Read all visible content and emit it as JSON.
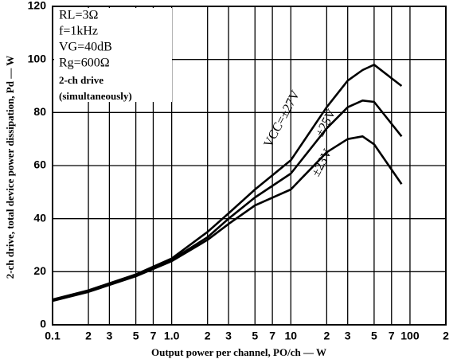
{
  "chart_data": {
    "type": "line",
    "x_label": "Output power per channel, PO/ch — W",
    "y_label": "2-ch drive, total device power dissipation, Pd — W",
    "annotations": [
      "RL=3Ω",
      "f=1kHz",
      "VG=40dB",
      "Rg=600Ω",
      "2-ch drive",
      "(simultaneously)"
    ],
    "x": [
      0.1,
      0.2,
      0.5,
      1,
      2,
      3,
      5,
      10,
      20,
      30,
      40,
      50,
      85
    ],
    "series": [
      {
        "name": "VCC=±27V",
        "color": "#000000",
        "values": [
          9.5,
          13,
          19,
          25,
          35,
          42,
          51,
          62,
          82,
          92,
          96,
          98,
          90
        ]
      },
      {
        "name": "±25V",
        "color": "#000000",
        "values": [
          9.3,
          12.7,
          18.7,
          24.5,
          33,
          40,
          48,
          57,
          74,
          82,
          84.5,
          84,
          71
        ]
      },
      {
        "name": "±23V",
        "color": "#000000",
        "values": [
          9,
          12.4,
          18.3,
          24,
          32,
          38,
          45,
          51,
          65,
          70,
          71,
          68,
          53
        ]
      }
    ],
    "xlim": [
      0.1,
      200
    ],
    "ylim": [
      0,
      120
    ],
    "log_x": true,
    "grid": true,
    "xticks": [
      0.1,
      {
        "value": 0.2,
        "label": "2"
      },
      {
        "value": 0.3,
        "label": "3"
      },
      {
        "value": 0.5,
        "label": "5"
      },
      {
        "value": 0.7,
        "label": "7"
      },
      {
        "value": 1,
        "label": "1.0"
      },
      {
        "value": 2,
        "label": "2"
      },
      {
        "value": 3,
        "label": "3"
      },
      {
        "value": 5,
        "label": "5"
      },
      {
        "value": 7,
        "label": "7"
      },
      10,
      {
        "value": 20,
        "label": "2"
      },
      {
        "value": 30,
        "label": "3"
      },
      {
        "value": 50,
        "label": "5"
      },
      {
        "value": 70,
        "label": "7"
      },
      100,
      {
        "value": 200,
        "label": "2"
      }
    ],
    "yticks": [
      0,
      20,
      40,
      60,
      80,
      100,
      120
    ]
  }
}
